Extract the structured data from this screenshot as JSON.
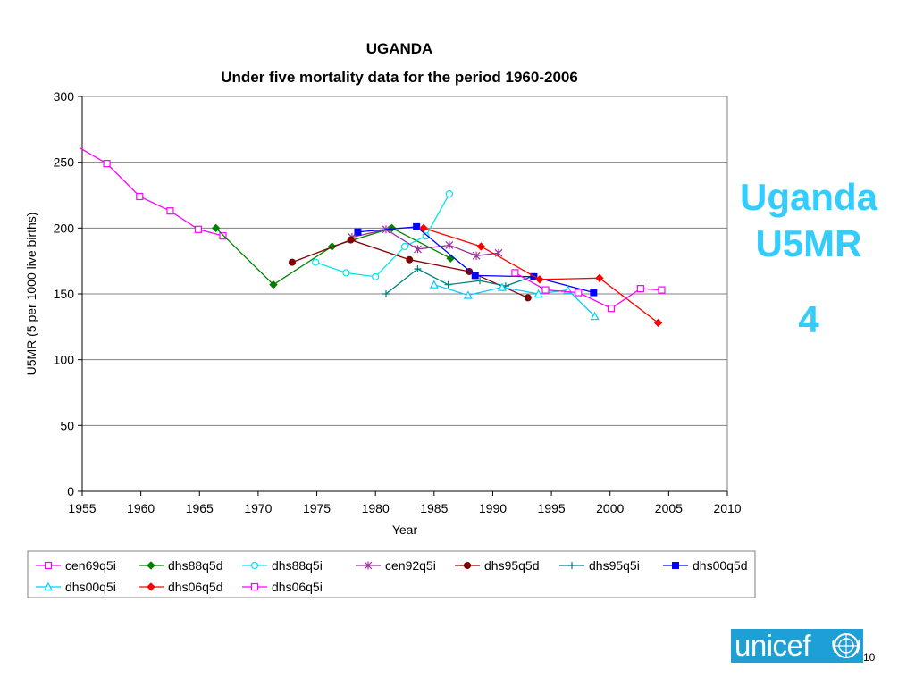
{
  "side": {
    "title_line1": "Uganda",
    "title_line2": "U5MR",
    "number": "4"
  },
  "logo": {
    "text": "unicef",
    "emblem": "unicef-emblem-icon"
  },
  "page_number": "10",
  "colors": {
    "side_text": "#33ccff",
    "logo_bg": "#1e9fd6"
  },
  "chart_data": {
    "type": "line",
    "title": "UGANDA",
    "subtitle": "Under five mortality data for the period 1960-2006",
    "xlabel": "Year",
    "ylabel": "U5MR (5 per 1000 live births)",
    "xlim": [
      1955,
      2010
    ],
    "ylim": [
      0,
      300
    ],
    "xticks": [
      1955,
      1960,
      1965,
      1970,
      1975,
      1980,
      1985,
      1990,
      1995,
      2000,
      2005,
      2010
    ],
    "yticks": [
      0,
      50,
      100,
      150,
      200,
      250,
      300
    ],
    "grid": "horizontal",
    "legend_position": "bottom",
    "series": [
      {
        "name": "cen69q5i",
        "color": "#ff00ff",
        "marker": "square-open",
        "x": [
          1954.7,
          1957.1,
          1959.9,
          1962.5,
          1964.9,
          1967.0
        ],
        "y": [
          261,
          249,
          224,
          213,
          199,
          194
        ]
      },
      {
        "name": "dhs88q5d",
        "color": "#008000",
        "marker": "diamond-filled",
        "x": [
          1966.4,
          1971.3,
          1976.3,
          1981.4,
          1986.4
        ],
        "y": [
          200,
          157,
          186,
          200,
          177
        ]
      },
      {
        "name": "dhs88q5i",
        "color": "#00e5ee",
        "marker": "circle-open",
        "x": [
          1974.9,
          1977.5,
          1980.0,
          1982.5,
          1984.3,
          1986.3
        ],
        "y": [
          174,
          166,
          163,
          186,
          194,
          226
        ]
      },
      {
        "name": "cen92q5i",
        "color": "#993399",
        "marker": "star",
        "x": [
          1978.0,
          1980.9,
          1983.6,
          1986.3,
          1988.6,
          1990.5
        ],
        "y": [
          193,
          199,
          184,
          187,
          179,
          181
        ]
      },
      {
        "name": "dhs95q5d",
        "color": "#800000",
        "marker": "circle-filled",
        "x": [
          1972.9,
          1977.9,
          1982.9,
          1988.0,
          1993.0
        ],
        "y": [
          174,
          191,
          176,
          167,
          147
        ]
      },
      {
        "name": "dhs95q5i",
        "color": "#008080",
        "marker": "plus",
        "x": [
          1980.9,
          1983.6,
          1986.2,
          1988.9,
          1991.1,
          1993.3
        ],
        "y": [
          150,
          169,
          157,
          160,
          156,
          163
        ]
      },
      {
        "name": "dhs00q5d",
        "color": "#0000ff",
        "marker": "square-filled",
        "x": [
          1978.5,
          1983.5,
          1988.5,
          1993.5,
          1998.6
        ],
        "y": [
          197,
          201,
          164,
          163,
          151
        ]
      },
      {
        "name": "dhs00q5i",
        "color": "#00ccff",
        "marker": "triangle-open",
        "x": [
          1985.0,
          1987.9,
          1990.8,
          1993.9,
          1996.4,
          1998.7
        ],
        "y": [
          157,
          149,
          155,
          150,
          153,
          133
        ]
      },
      {
        "name": "dhs06q5d",
        "color": "#ff0000",
        "marker": "diamond-filled",
        "x": [
          1984.1,
          1989.0,
          1994.0,
          1999.1,
          2004.1
        ],
        "y": [
          200,
          186,
          161,
          162,
          128
        ]
      },
      {
        "name": "dhs06q5i",
        "color": "#ff00ff",
        "marker": "square-open",
        "x": [
          1991.9,
          1994.5,
          1997.3,
          2000.1,
          2002.6,
          2004.4
        ],
        "y": [
          166,
          153,
          151,
          139,
          154,
          153
        ]
      }
    ]
  }
}
